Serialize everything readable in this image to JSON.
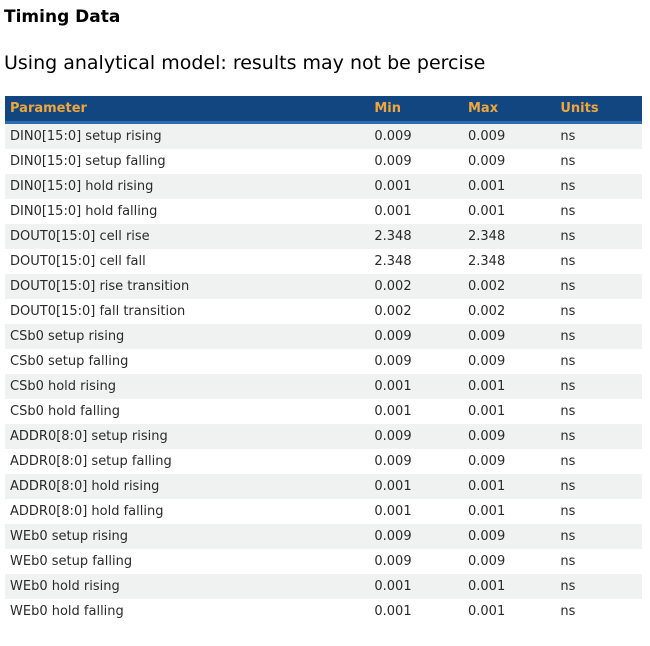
{
  "page": {
    "title": "Timing Data",
    "subtitle": "Using analytical model: results may not be percise"
  },
  "colors": {
    "header_bg": "#114680",
    "header_border": "#2e6cae",
    "header_text": "#f0a63c",
    "row_alt_bg": "#f0f1f1",
    "row_text": "#2a2a2a"
  },
  "table": {
    "columns": [
      "Parameter",
      "Min",
      "Max",
      "Units"
    ],
    "rows": [
      {
        "parameter": "DIN0[15:0] setup rising",
        "min": "0.009",
        "max": "0.009",
        "units": "ns"
      },
      {
        "parameter": "DIN0[15:0] setup falling",
        "min": "0.009",
        "max": "0.009",
        "units": "ns"
      },
      {
        "parameter": "DIN0[15:0] hold rising",
        "min": "0.001",
        "max": "0.001",
        "units": "ns"
      },
      {
        "parameter": "DIN0[15:0] hold falling",
        "min": "0.001",
        "max": "0.001",
        "units": "ns"
      },
      {
        "parameter": "DOUT0[15:0] cell rise",
        "min": "2.348",
        "max": "2.348",
        "units": "ns"
      },
      {
        "parameter": "DOUT0[15:0] cell fall",
        "min": "2.348",
        "max": "2.348",
        "units": "ns"
      },
      {
        "parameter": "DOUT0[15:0] rise transition",
        "min": "0.002",
        "max": "0.002",
        "units": "ns"
      },
      {
        "parameter": "DOUT0[15:0] fall transition",
        "min": "0.002",
        "max": "0.002",
        "units": "ns"
      },
      {
        "parameter": "CSb0 setup rising",
        "min": "0.009",
        "max": "0.009",
        "units": "ns"
      },
      {
        "parameter": "CSb0 setup falling",
        "min": "0.009",
        "max": "0.009",
        "units": "ns"
      },
      {
        "parameter": "CSb0 hold rising",
        "min": "0.001",
        "max": "0.001",
        "units": "ns"
      },
      {
        "parameter": "CSb0 hold falling",
        "min": "0.001",
        "max": "0.001",
        "units": "ns"
      },
      {
        "parameter": "ADDR0[8:0] setup rising",
        "min": "0.009",
        "max": "0.009",
        "units": "ns"
      },
      {
        "parameter": "ADDR0[8:0] setup falling",
        "min": "0.009",
        "max": "0.009",
        "units": "ns"
      },
      {
        "parameter": "ADDR0[8:0] hold rising",
        "min": "0.001",
        "max": "0.001",
        "units": "ns"
      },
      {
        "parameter": "ADDR0[8:0] hold falling",
        "min": "0.001",
        "max": "0.001",
        "units": "ns"
      },
      {
        "parameter": "WEb0 setup rising",
        "min": "0.009",
        "max": "0.009",
        "units": "ns"
      },
      {
        "parameter": "WEb0 setup falling",
        "min": "0.009",
        "max": "0.009",
        "units": "ns"
      },
      {
        "parameter": "WEb0 hold rising",
        "min": "0.001",
        "max": "0.001",
        "units": "ns"
      },
      {
        "parameter": "WEb0 hold falling",
        "min": "0.001",
        "max": "0.001",
        "units": "ns"
      }
    ]
  }
}
